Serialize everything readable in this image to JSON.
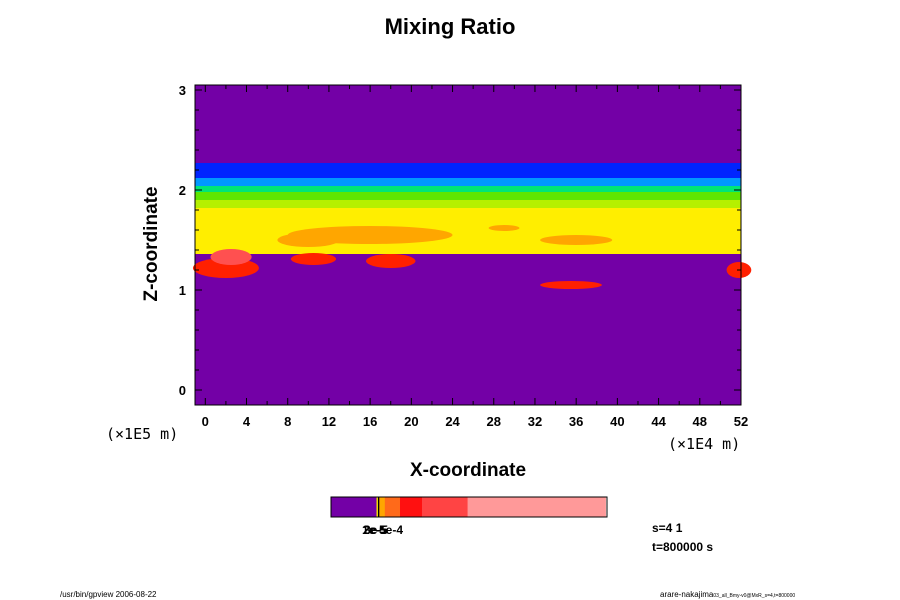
{
  "chart_data": {
    "type": "heatmap",
    "title": "Mixing Ratio",
    "xlabel": "X-coordinate",
    "ylabel": "Z-coordinate",
    "x_unit": "(×1E4 m)",
    "y_unit": "(×1E5 m)",
    "xlim": [
      -1,
      52
    ],
    "ylim": [
      -0.15,
      3.05
    ],
    "x_ticks": [
      "0",
      "4",
      "8",
      "12",
      "16",
      "20",
      "24",
      "28",
      "32",
      "36",
      "40",
      "44",
      "48",
      "52"
    ],
    "y_ticks": [
      "0",
      "1",
      "2",
      "3"
    ],
    "background_color": "#7300a6",
    "bands": [
      {
        "z0": 2.12,
        "z1": 2.27,
        "color": "#0024ff"
      },
      {
        "z0": 2.04,
        "z1": 2.12,
        "color": "#0098ff"
      },
      {
        "z0": 1.98,
        "z1": 2.04,
        "color": "#00e676"
      },
      {
        "z0": 1.9,
        "z1": 1.98,
        "color": "#5fe600"
      },
      {
        "z0": 1.82,
        "z1": 1.9,
        "color": "#b5f000"
      },
      {
        "z0": 1.36,
        "z1": 1.82,
        "color": "#ffee00"
      }
    ],
    "blobs": [
      {
        "x": 2.0,
        "z": 1.22,
        "rx": 3.2,
        "rz": 0.1,
        "color": "#ff2000"
      },
      {
        "x": 2.5,
        "z": 1.33,
        "rx": 2.0,
        "rz": 0.08,
        "color": "#ff5050"
      },
      {
        "x": 10.5,
        "z": 1.31,
        "rx": 2.2,
        "rz": 0.06,
        "color": "#ff2000"
      },
      {
        "x": 18.0,
        "z": 1.29,
        "rx": 2.4,
        "rz": 0.07,
        "color": "#ff2000"
      },
      {
        "x": 35.5,
        "z": 1.05,
        "rx": 3.0,
        "rz": 0.04,
        "color": "#ff2000"
      },
      {
        "x": 51.8,
        "z": 1.2,
        "rx": 1.2,
        "rz": 0.08,
        "color": "#ff2000"
      }
    ],
    "orange_patches": [
      {
        "x": 16.0,
        "z": 1.55,
        "rx": 8.0,
        "rz": 0.09,
        "color": "#ffa600"
      },
      {
        "x": 10.0,
        "z": 1.5,
        "rx": 3.0,
        "rz": 0.07,
        "color": "#ffa600"
      },
      {
        "x": 36.0,
        "z": 1.5,
        "rx": 3.5,
        "rz": 0.05,
        "color": "#ffa600"
      },
      {
        "x": 29.0,
        "z": 1.62,
        "rx": 1.5,
        "rz": 0.03,
        "color": "#ffa600"
      }
    ],
    "colorbar": [
      {
        "frac": 0.165,
        "color": "#7300a6"
      },
      {
        "frac": 0.005,
        "color": "#ffee00"
      },
      {
        "frac": 0.005,
        "color": "#000000"
      },
      {
        "frac": 0.02,
        "color": "#ffa600"
      },
      {
        "frac": 0.055,
        "color": "#ff6a1a"
      },
      {
        "frac": 0.08,
        "color": "#ff1010"
      },
      {
        "frac": 0.165,
        "color": "#ff4444"
      },
      {
        "frac": 0.5,
        "color": "#ff9999"
      }
    ],
    "colorbar_labels": [
      "1e-5",
      "2e-5",
      "3e-5",
      "5e-4"
    ]
  },
  "info": {
    "step": "s=4 1",
    "time": "t=800000 s"
  },
  "footer": {
    "left": "/usr/bin/gpview 2006-08-22",
    "right_main": "arare-nakajima",
    "right_sub": "03_all_Bmy-v0@MxR_s=4,t=800000"
  }
}
